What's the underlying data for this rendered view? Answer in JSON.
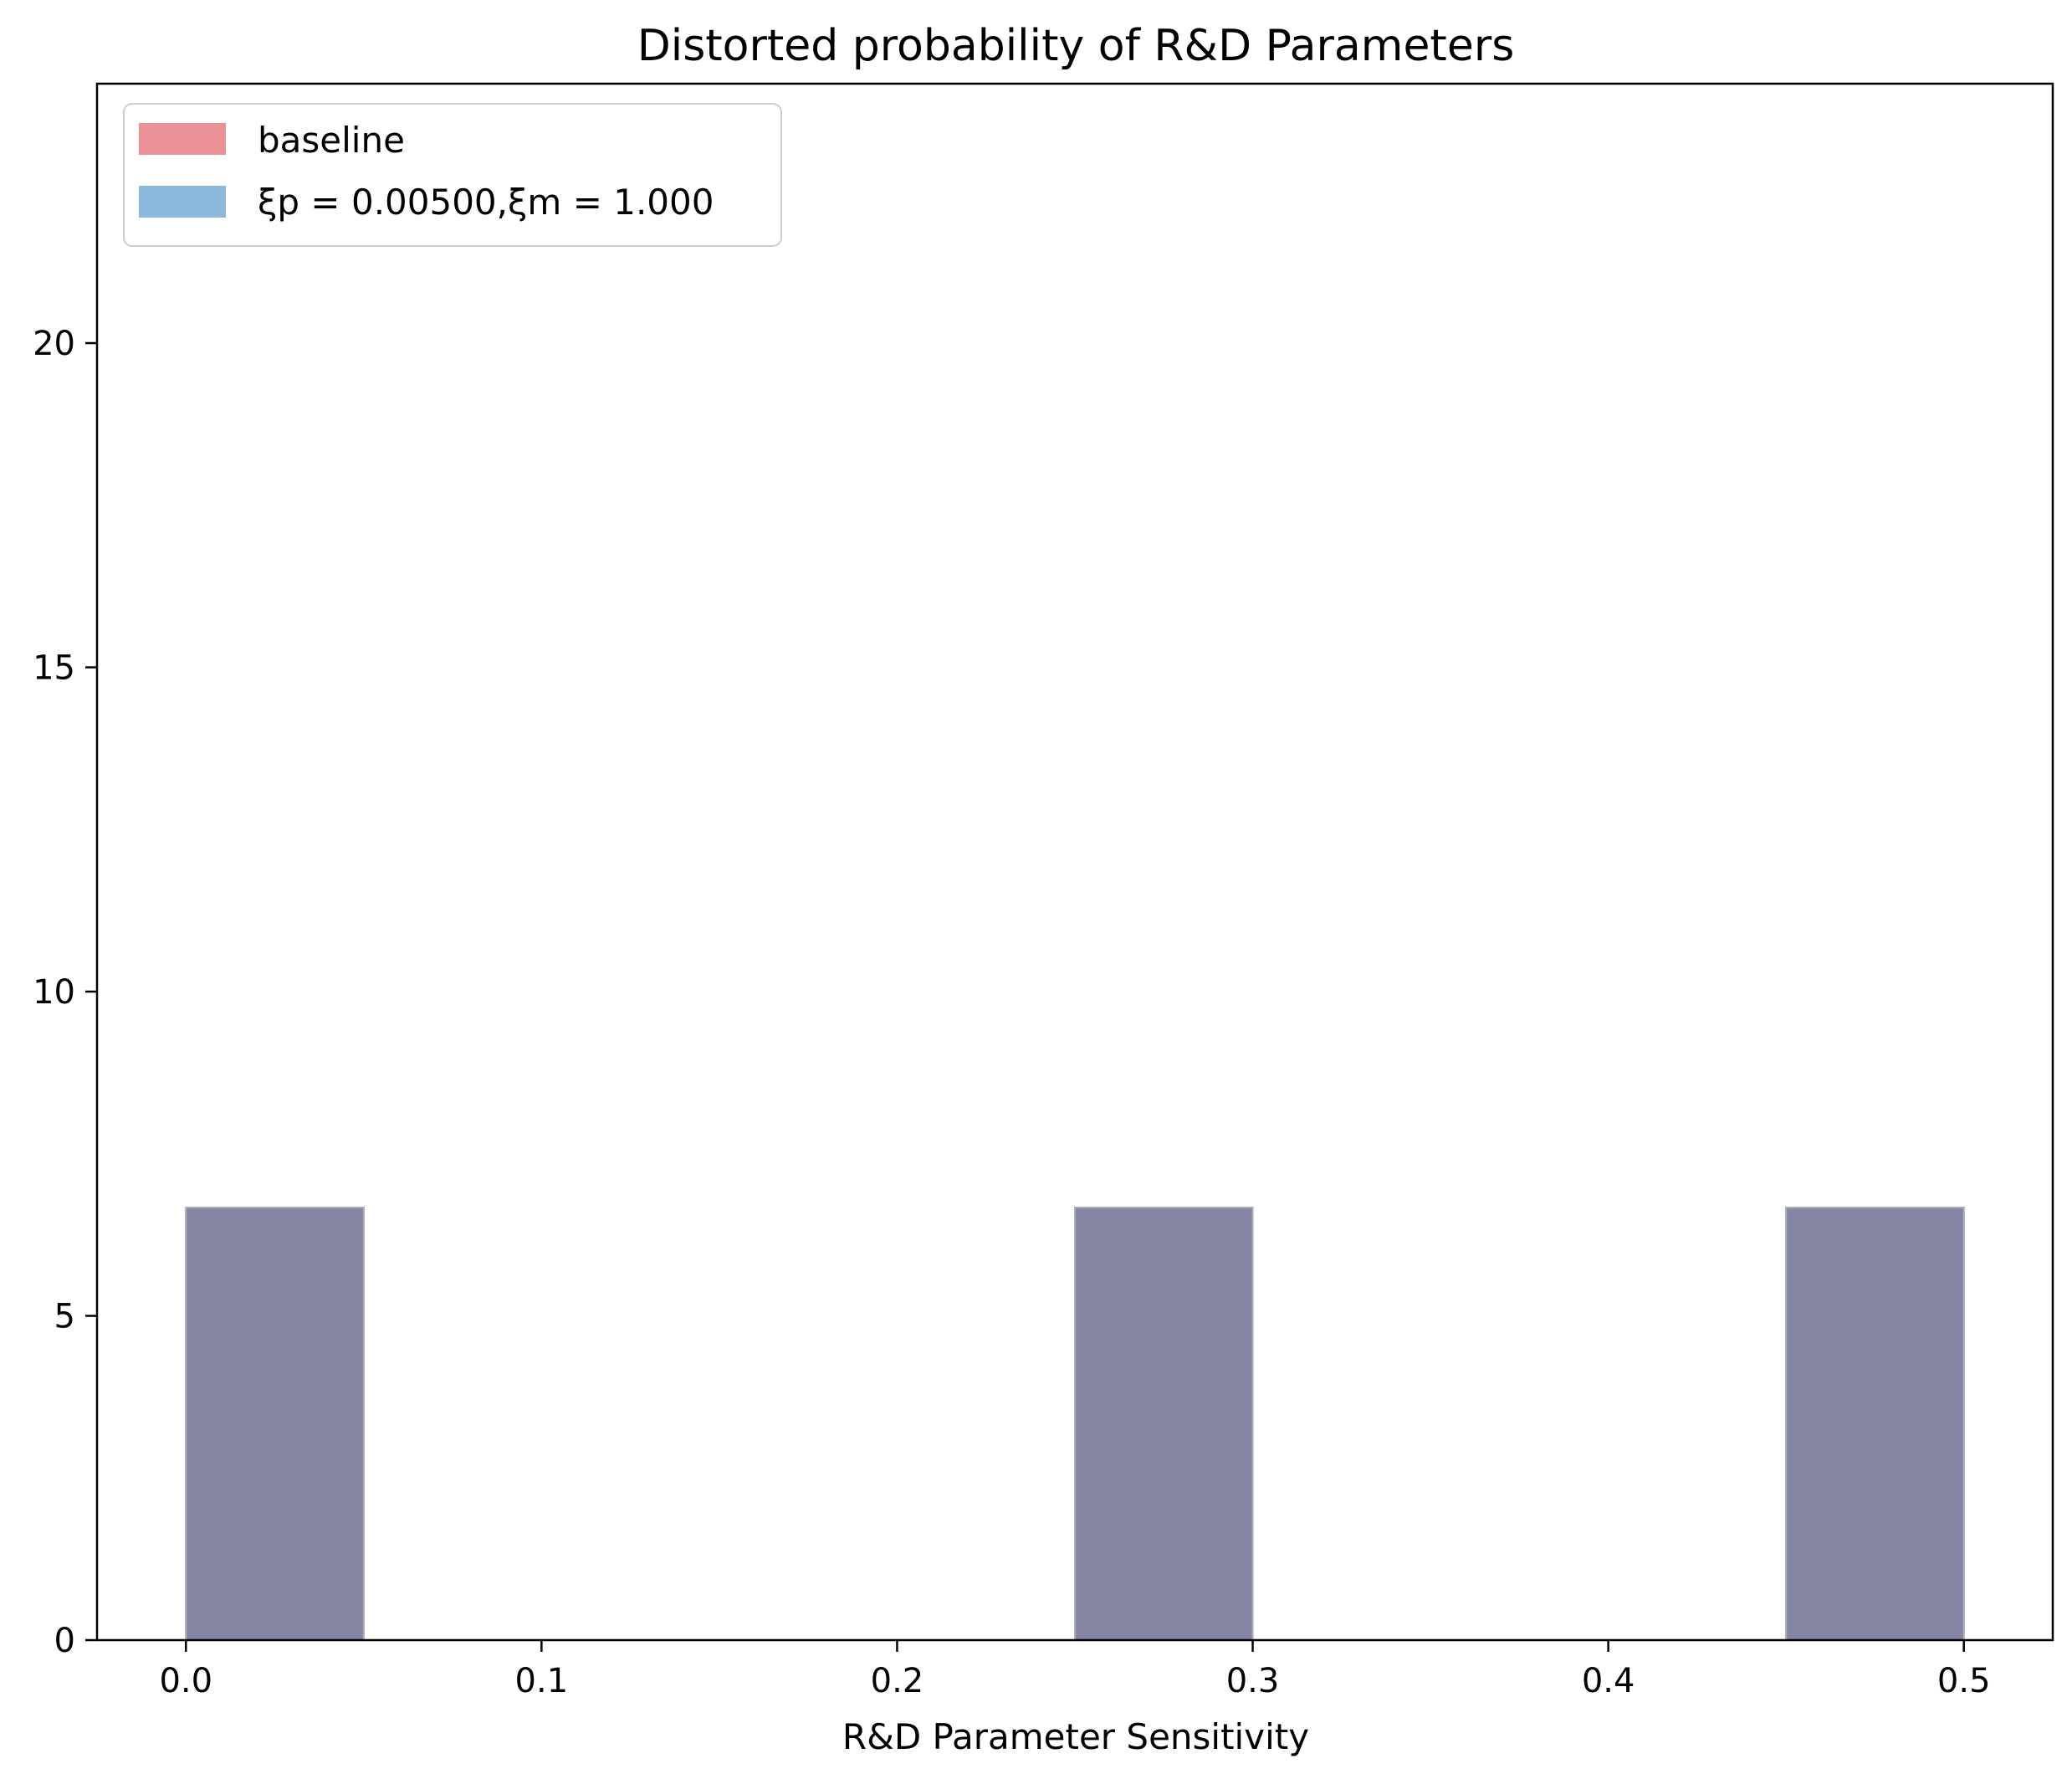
{
  "chart_data": {
    "type": "bar",
    "title": "Distorted probability of R&D Parameters",
    "xlabel": "R&D Parameter Sensitivity",
    "ylabel": "",
    "xlim": [
      -0.025,
      0.525
    ],
    "ylim": [
      0,
      24
    ],
    "xticks": [
      "0.0",
      "0.1",
      "0.2",
      "0.3",
      "0.4",
      "0.5"
    ],
    "yticks": [
      "0",
      "5",
      "10",
      "15",
      "20"
    ],
    "grid": false,
    "legend_position": "top-left",
    "series": [
      {
        "name": "baseline",
        "color": "#e8868a",
        "bins": [
          {
            "x0": 0.0,
            "x1": 0.05,
            "value": 6.67
          },
          {
            "x0": 0.25,
            "x1": 0.3,
            "value": 6.67
          },
          {
            "x0": 0.45,
            "x1": 0.5,
            "value": 6.67
          }
        ]
      },
      {
        "name": "ξp = 0.00500,ξm = 1.000",
        "color": "#7fb1d7",
        "bins": [
          {
            "x0": 0.0,
            "x1": 0.05,
            "value": 6.67
          },
          {
            "x0": 0.25,
            "x1": 0.3,
            "value": 6.67
          },
          {
            "x0": 0.45,
            "x1": 0.5,
            "value": 6.67
          }
        ]
      }
    ],
    "overlap_color": "#8586a3"
  }
}
